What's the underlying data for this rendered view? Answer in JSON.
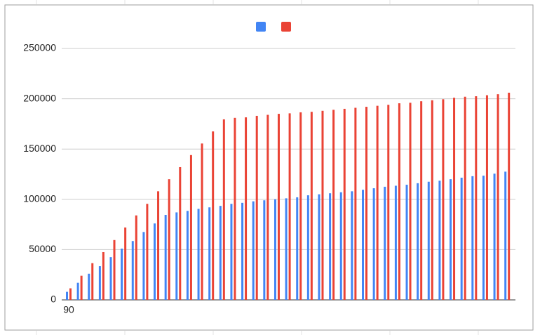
{
  "chart_data": {
    "type": "bar",
    "categories": [
      "90",
      null,
      null,
      null,
      null,
      null,
      null,
      null,
      null,
      null,
      null,
      null,
      null,
      null,
      null,
      null,
      null,
      null,
      null,
      null,
      null,
      null,
      null,
      null,
      null,
      null,
      null,
      null,
      null,
      null,
      null,
      null,
      null,
      null,
      null,
      null,
      null,
      null,
      null,
      null,
      null
    ],
    "series": [
      {
        "color": "#4285f4",
        "values": [
          8000,
          17000,
          26000,
          33500,
          42500,
          51000,
          58500,
          67500,
          76000,
          84500,
          87000,
          88500,
          90500,
          92000,
          93500,
          95500,
          96500,
          98000,
          99000,
          100000,
          101000,
          102000,
          104000,
          105000,
          106000,
          107000,
          108000,
          109500,
          111000,
          112500,
          113500,
          114500,
          116000,
          117500,
          118500,
          120000,
          121500,
          123000,
          123500,
          125500,
          127500
        ]
      },
      {
        "color": "#ea4335",
        "values": [
          11500,
          24000,
          36500,
          47500,
          59500,
          72000,
          84000,
          95500,
          108000,
          120000,
          132000,
          144000,
          155500,
          167500,
          179500,
          181000,
          181500,
          183000,
          184000,
          185000,
          185500,
          186500,
          187000,
          188000,
          189000,
          190000,
          191000,
          192000,
          193000,
          194000,
          195500,
          196000,
          197500,
          198500,
          199500,
          201000,
          202000,
          202500,
          203500,
          204500,
          206000
        ]
      }
    ],
    "ylim": [
      0,
      250000
    ],
    "yticks": [
      0,
      50000,
      100000,
      150000,
      200000,
      250000
    ],
    "grid": true,
    "legend": "top"
  }
}
